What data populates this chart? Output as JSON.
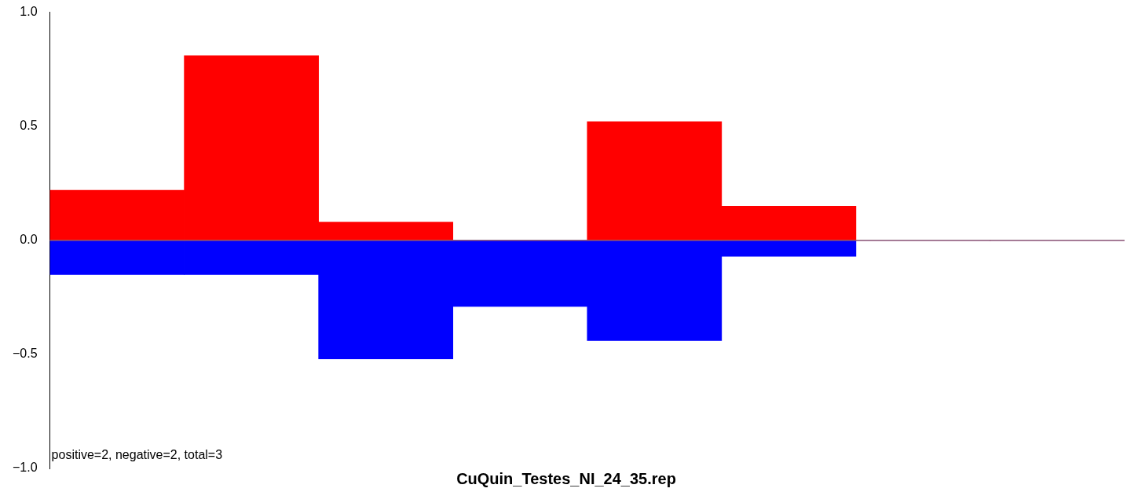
{
  "chart_data": {
    "type": "bar",
    "title": "CuQuin_Testes_NI_24_35.rep",
    "stacked": true,
    "categories": [
      null,
      null,
      null,
      null,
      null,
      null,
      null,
      null
    ],
    "series": [
      {
        "color": "#ff0000",
        "values": [
          0.22,
          0.81,
          0.08,
          0,
          0.52,
          0.15,
          0,
          0
        ]
      },
      {
        "color": "#0000ff",
        "values": [
          -0.15,
          -0.15,
          -0.52,
          -0.29,
          -0.44,
          -0.07,
          0,
          0
        ]
      }
    ],
    "ylim": [
      -1,
      1
    ],
    "yticks": [
      {
        "value": -1,
        "label": "−1.0"
      },
      {
        "value": -0.5,
        "label": "−0.5"
      },
      {
        "value": 0,
        "label": "0.0"
      },
      0.5,
      {
        "value": 1,
        "label": "1.0"
      }
    ],
    "ref_lines": [
      {
        "axis": "y",
        "value": 0,
        "color": "#808080"
      }
    ],
    "annotations": [
      "positive=2, negative=2, total=3"
    ],
    "grid": false,
    "legend": false,
    "tick_labels": "y"
  }
}
